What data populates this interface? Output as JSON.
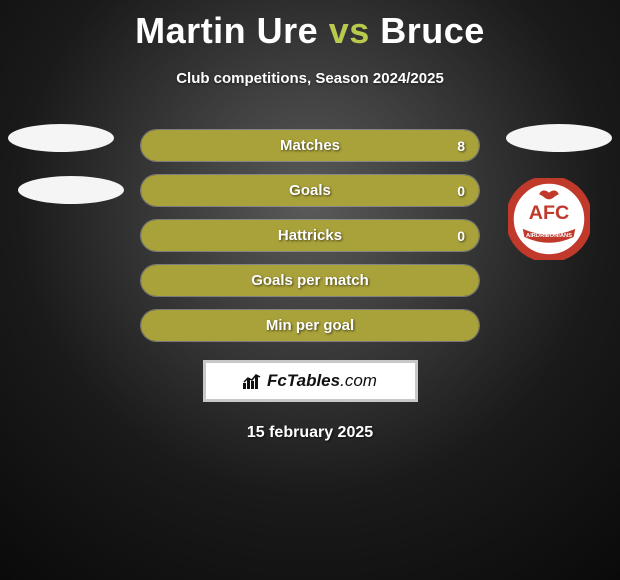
{
  "title": {
    "player1": "Martin Ure",
    "vs": "vs",
    "player2": "Bruce"
  },
  "subtitle": "Club competitions, Season 2024/2025",
  "player1_color": "#a9a13a",
  "bars": [
    {
      "label": "Matches",
      "value": "8",
      "fill_pct": 100
    },
    {
      "label": "Goals",
      "value": "0",
      "fill_pct": 100
    },
    {
      "label": "Hattricks",
      "value": "0",
      "fill_pct": 100
    },
    {
      "label": "Goals per match",
      "value": "",
      "fill_pct": 100
    },
    {
      "label": "Min per goal",
      "value": "",
      "fill_pct": 100
    }
  ],
  "logo_text_a": "FcTables",
  "logo_text_b": ".com",
  "date": "15 february 2025",
  "badge": {
    "ring_color": "#c0392b",
    "text_top": "AFC",
    "ribbon_text": "AIRDRIEONIANS"
  }
}
